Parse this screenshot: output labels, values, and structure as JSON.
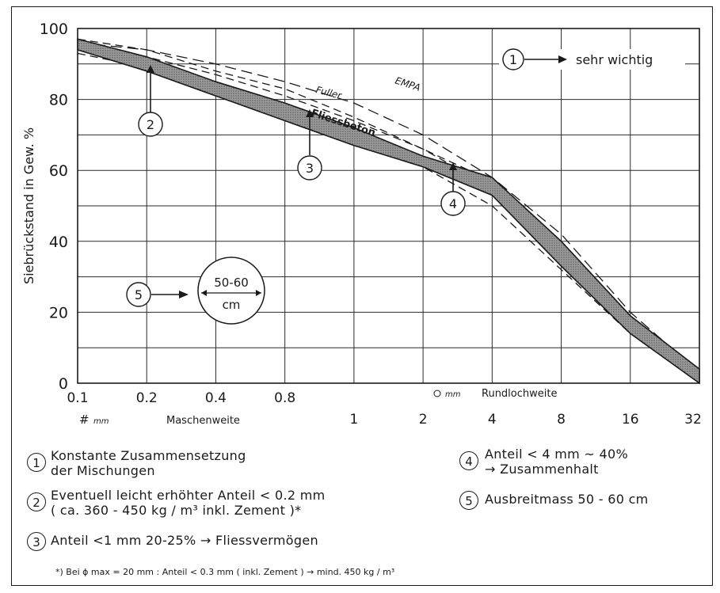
{
  "chart_data": {
    "type": "area",
    "ylabel": "Siebrückstand  in  Gew. %",
    "yticks": [
      "0",
      "20",
      "40",
      "60",
      "80",
      "100"
    ],
    "ylim": [
      0,
      100
    ],
    "x_ticks_top": [
      "0.1",
      "0.2",
      "0.4",
      "0.8"
    ],
    "x_ticks_bottom": [
      "1",
      "2",
      "4",
      "8",
      "16",
      "32"
    ],
    "x_axis_label_top": "Rundlochweite",
    "x_axis_label_top_unit": "mm",
    "x_axis_label_bottom": "Maschenweite",
    "x_axis_label_bottom_unit": "mm",
    "grid": true,
    "x": [
      "0.1",
      "0.2",
      "0.4",
      "0.8",
      "1",
      "2",
      "4",
      "8",
      "16",
      "32"
    ],
    "series": [
      {
        "name": "Fliessbeton",
        "upper": [
          97,
          92,
          85,
          79,
          72,
          64,
          58,
          40,
          19,
          4
        ],
        "lower": [
          94,
          88,
          81,
          74,
          67,
          61,
          53,
          33,
          14,
          0
        ]
      },
      {
        "name": "Fuller",
        "values": [
          95,
          92,
          87,
          81,
          74,
          66,
          55,
          37,
          17,
          2
        ]
      },
      {
        "name": "EMPA",
        "values": [
          96,
          94,
          90,
          85,
          79,
          70,
          58,
          42,
          20,
          3
        ]
      },
      {
        "values": [
          93,
          89,
          83,
          77,
          70,
          61,
          50,
          32,
          14,
          0
        ]
      },
      {
        "values": [
          97,
          94,
          88,
          83,
          75,
          66,
          57,
          40,
          19,
          2
        ]
      }
    ],
    "annotations": {
      "a1": {
        "num": "1",
        "text": "sehr  wichtig"
      },
      "a2": {
        "num": "2"
      },
      "a3": {
        "num": "3"
      },
      "a4": {
        "num": "4"
      },
      "a5": {
        "num": "5",
        "line1": "50-60",
        "line2": "cm"
      }
    }
  },
  "legend_notes": [
    {
      "num": "1",
      "line1": "Konstante  Zusammensetzung",
      "line2": "der  Mischungen"
    },
    {
      "num": "2",
      "line1": "Eventuell  leicht  erhöhter  Anteil  < 0.2 mm",
      "line2": "( ca.  360 - 450  kg / m³  inkl.  Zement )*"
    },
    {
      "num": "3",
      "line1": "Anteil  <1 mm   20-25%  →  Fliessvermögen"
    },
    {
      "num": "4",
      "line1": "Anteil  < 4 mm   ~  40%",
      "line2": "→  Zusammenhalt"
    },
    {
      "num": "5",
      "line1": "Ausbreitmass   50 - 60 cm"
    }
  ],
  "footnote": "*) Bei  ϕ max  = 20 mm  :  Anteil  < 0.3 mm  ( inkl. Zement )  →  mind.  450 kg / m³"
}
